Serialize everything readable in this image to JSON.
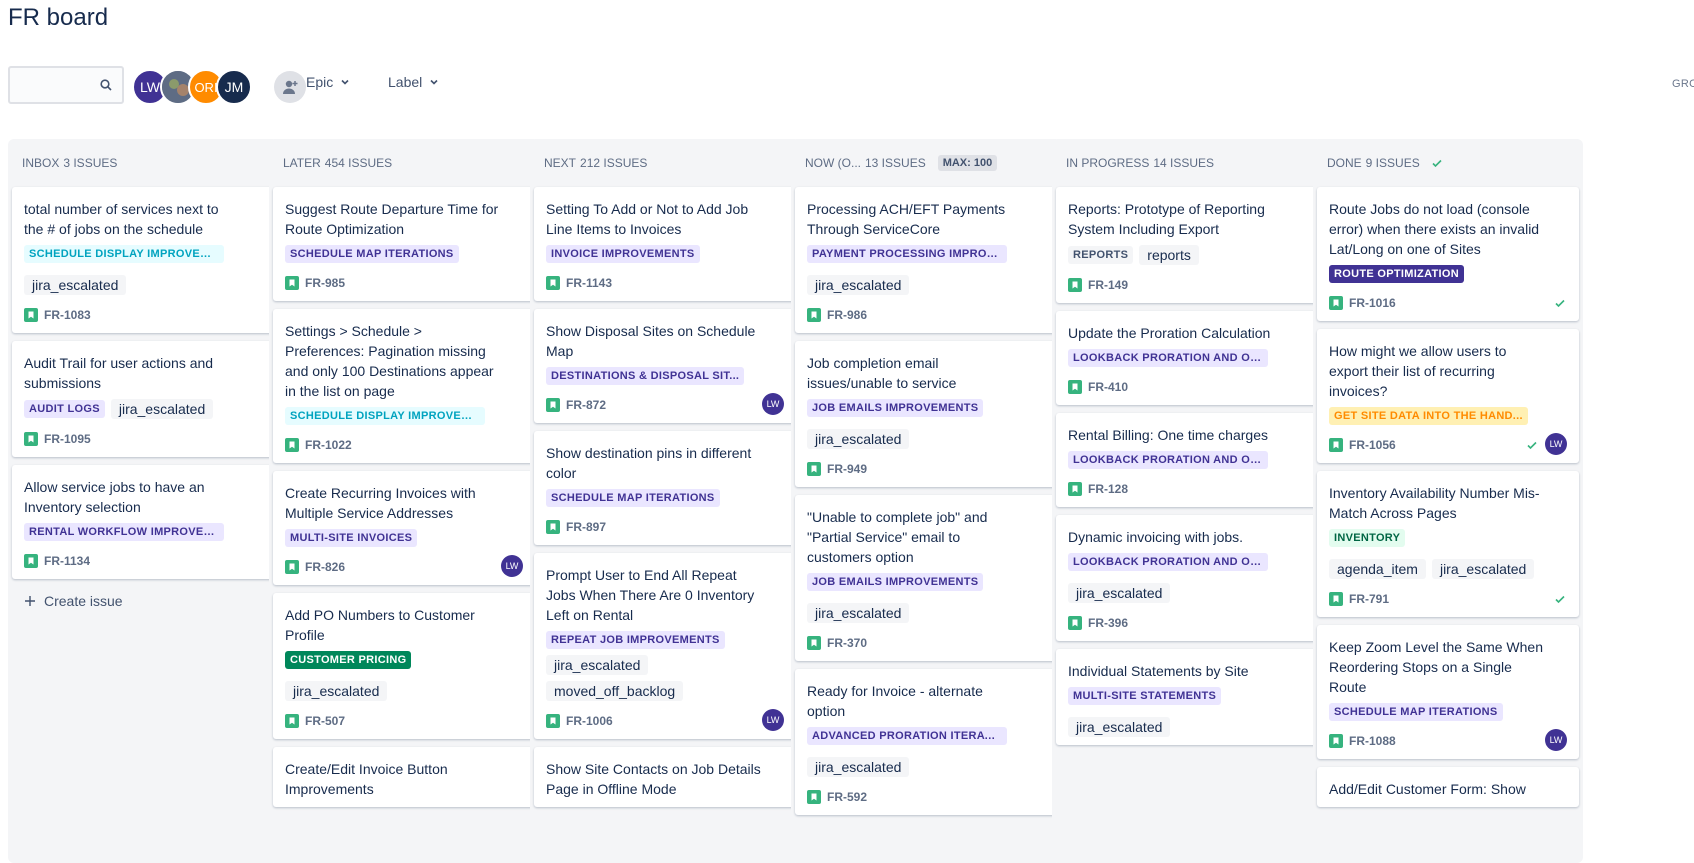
{
  "page": {
    "title": "FR board"
  },
  "toolbar": {
    "search": {
      "placeholder": "",
      "icon": "search-icon"
    },
    "avatars": [
      {
        "initials": "LW",
        "color": "#403294"
      },
      {
        "initials": "",
        "color": "#5E6C84",
        "type": "photo"
      },
      {
        "initials": "ORI",
        "color": "#FF8B00"
      },
      {
        "initials": "JM",
        "color": "#172B4D"
      }
    ],
    "filters": [
      {
        "label": "Epic"
      },
      {
        "label": "Label"
      }
    ],
    "group_by_label": "GRO"
  },
  "colors": {
    "teal_bg": "#E6FCFF",
    "teal_fg": "#00A3BF",
    "purple_bg": "#EAE6FF",
    "purple_fg": "#403294",
    "dark_purple_bg": "#403294",
    "dark_purple_fg": "#FFFFFF",
    "green_bg": "#00875A",
    "green_fg": "#FFFFFF",
    "green_light_bg": "#E3FCEF",
    "green_light_fg": "#006644",
    "orange_bg": "#FFF0B3",
    "orange_fg": "#FF8B00",
    "gray_bg": "#F4F5F7",
    "gray_fg": "#42526E"
  },
  "columns": [
    {
      "name": "INBOX",
      "count": "3 ISSUES",
      "max": "",
      "done_check": false,
      "create_issue": "Create issue",
      "cards": [
        {
          "title": "total number of services next to the # of jobs on the schedule",
          "epic": "SCHEDULE DISPLAY IMPROVEM...",
          "epic_style": "teal",
          "labels": [
            "jira_escalated"
          ],
          "key": "FR-1083",
          "assignee": "",
          "done": false
        },
        {
          "title": "Audit Trail for user actions and submissions",
          "epic": "AUDIT LOGS",
          "epic_style": "purple",
          "labels": [
            "jira_escalated"
          ],
          "key": "FR-1095",
          "assignee": "",
          "done": false,
          "inline": true
        },
        {
          "title": "Allow service jobs to have an Inventory selection",
          "epic": "RENTAL WORKFLOW IMPROVEM...",
          "epic_style": "purple",
          "labels": [],
          "key": "FR-1134",
          "assignee": "",
          "done": false
        }
      ]
    },
    {
      "name": "LATER",
      "count": "454 ISSUES",
      "max": "",
      "done_check": false,
      "create_issue": "",
      "cards": [
        {
          "title": "Suggest Route Departure Time for Route Optimization",
          "epic": "SCHEDULE MAP ITERATIONS",
          "epic_style": "purple",
          "labels": [],
          "key": "FR-985",
          "assignee": "",
          "done": false
        },
        {
          "title": "Settings > Schedule > Preferences: Pagination missing and only 100 Destinations appear in the list on page",
          "epic": "SCHEDULE DISPLAY IMPROVEM...",
          "epic_style": "teal",
          "labels": [],
          "key": "FR-1022",
          "assignee": "",
          "done": false
        },
        {
          "title": "Create Recurring Invoices with Multiple Service Addresses",
          "epic": "MULTI-SITE INVOICES",
          "epic_style": "purple",
          "labels": [],
          "key": "FR-826",
          "assignee": "LW",
          "done": false
        },
        {
          "title": "Add PO Numbers to Customer Profile",
          "epic": "CUSTOMER PRICING",
          "epic_style": "green",
          "labels": [
            "jira_escalated"
          ],
          "key": "FR-507",
          "assignee": "",
          "done": false
        },
        {
          "title": "Create/Edit Invoice Button Improvements",
          "epic": "",
          "epic_style": "",
          "labels": [],
          "key": "",
          "assignee": "",
          "done": false
        }
      ]
    },
    {
      "name": "NEXT",
      "count": "212 ISSUES",
      "max": "",
      "done_check": false,
      "create_issue": "",
      "cards": [
        {
          "title": "Setting To Add or Not to Add Job Line Items to Invoices",
          "epic": "INVOICE IMPROVEMENTS",
          "epic_style": "purple",
          "labels": [],
          "key": "FR-1143",
          "assignee": "",
          "done": false
        },
        {
          "title": "Show Disposal Sites on Schedule Map",
          "epic": "DESTINATIONS & DISPOSAL SIT...",
          "epic_style": "purple",
          "labels": [],
          "key": "FR-872",
          "assignee": "LW",
          "done": false
        },
        {
          "title": "Show destination pins in different color",
          "epic": "SCHEDULE MAP ITERATIONS",
          "epic_style": "purple",
          "labels": [],
          "key": "FR-897",
          "assignee": "",
          "done": false
        },
        {
          "title": "Prompt User to End All Repeat Jobs When There Are 0 Inventory Left on Rental",
          "epic": "REPEAT JOB IMPROVEMENTS",
          "epic_style": "purple",
          "labels": [
            "jira_escalated",
            "moved_off_backlog"
          ],
          "key": "FR-1006",
          "assignee": "LW",
          "done": false,
          "stack": true
        },
        {
          "title": "Show Site Contacts on Job Details Page in Offline Mode",
          "epic": "",
          "epic_style": "",
          "labels": [],
          "key": "",
          "assignee": "",
          "done": false
        }
      ]
    },
    {
      "name": "NOW (O...",
      "count": "13 ISSUES",
      "max": "MAX: 100",
      "done_check": false,
      "create_issue": "",
      "cards": [
        {
          "title": "Processing ACH/EFT Payments Through ServiceCore",
          "epic": "PAYMENT PROCESSING IMPROV...",
          "epic_style": "purple",
          "labels": [
            "jira_escalated"
          ],
          "key": "FR-986",
          "assignee": "",
          "done": false
        },
        {
          "title": "Job completion email issues/unable to service",
          "epic": "JOB EMAILS IMPROVEMENTS",
          "epic_style": "purple",
          "labels": [
            "jira_escalated"
          ],
          "key": "FR-949",
          "assignee": "",
          "done": false
        },
        {
          "title": "\"Unable to complete job\" and \"Partial Service\" email to customers option",
          "epic": "JOB EMAILS IMPROVEMENTS",
          "epic_style": "purple",
          "labels": [
            "jira_escalated"
          ],
          "key": "FR-370",
          "assignee": "",
          "done": false
        },
        {
          "title": "Ready for Invoice - alternate option",
          "epic": "ADVANCED PRORATION ITERATI...",
          "epic_style": "purple",
          "labels": [
            "jira_escalated"
          ],
          "key": "FR-592",
          "assignee": "",
          "done": false
        }
      ]
    },
    {
      "name": "IN PROGRESS",
      "count": "14 ISSUES",
      "max": "",
      "done_check": false,
      "create_issue": "",
      "cards": [
        {
          "title": "Reports: Prototype of Reporting System Including Export",
          "epic": "REPORTS",
          "epic_style": "gray",
          "labels": [
            "reports"
          ],
          "key": "FR-149",
          "assignee": "",
          "done": false,
          "inline": true
        },
        {
          "title": "Update the Proration Calculation",
          "epic": "LOOKBACK PRORATION AND ON...",
          "epic_style": "purple",
          "labels": [],
          "key": "FR-410",
          "assignee": "",
          "done": false
        },
        {
          "title": "Rental Billing: One time charges",
          "epic": "LOOKBACK PRORATION AND ON...",
          "epic_style": "purple",
          "labels": [],
          "key": "FR-128",
          "assignee": "",
          "done": false
        },
        {
          "title": "Dynamic invoicing with jobs.",
          "epic": "LOOKBACK PRORATION AND ON...",
          "epic_style": "purple",
          "labels": [
            "jira_escalated"
          ],
          "key": "FR-396",
          "assignee": "",
          "done": false
        },
        {
          "title": "Individual Statements by Site",
          "epic": "MULTI-SITE STATEMENTS",
          "epic_style": "purple",
          "labels": [
            "jira_escalated"
          ],
          "key": "",
          "assignee": "",
          "done": false
        }
      ]
    },
    {
      "name": "DONE",
      "count": "9 ISSUES",
      "max": "",
      "done_check": true,
      "create_issue": "",
      "cards": [
        {
          "title": "Route Jobs do not load (console error) when there exists an invalid Lat/Long on one of Sites",
          "epic": "ROUTE OPTIMIZATION",
          "epic_style": "dark_purple",
          "labels": [],
          "key": "FR-1016",
          "assignee": "",
          "done": true
        },
        {
          "title": "How might we allow users to export their list of recurring invoices?",
          "epic": "GET SITE DATA INTO THE HAND...",
          "epic_style": "orange",
          "labels": [],
          "key": "FR-1056",
          "assignee": "LW",
          "done": true
        },
        {
          "title": "Inventory Availability Number Mis-Match Across Pages",
          "epic": "INVENTORY",
          "epic_style": "green_light",
          "labels": [
            "agenda_item",
            "jira_escalated"
          ],
          "key": "FR-791",
          "assignee": "",
          "done": true,
          "labels_row": true
        },
        {
          "title": "Keep Zoom Level the Same When Reordering Stops on a Single Route",
          "epic": "SCHEDULE MAP ITERATIONS",
          "epic_style": "purple",
          "labels": [],
          "key": "FR-1088",
          "assignee": "LW",
          "done": false
        },
        {
          "title": "Add/Edit Customer Form: Show",
          "epic": "",
          "epic_style": "",
          "labels": [],
          "key": "",
          "assignee": "",
          "done": false
        }
      ]
    }
  ]
}
